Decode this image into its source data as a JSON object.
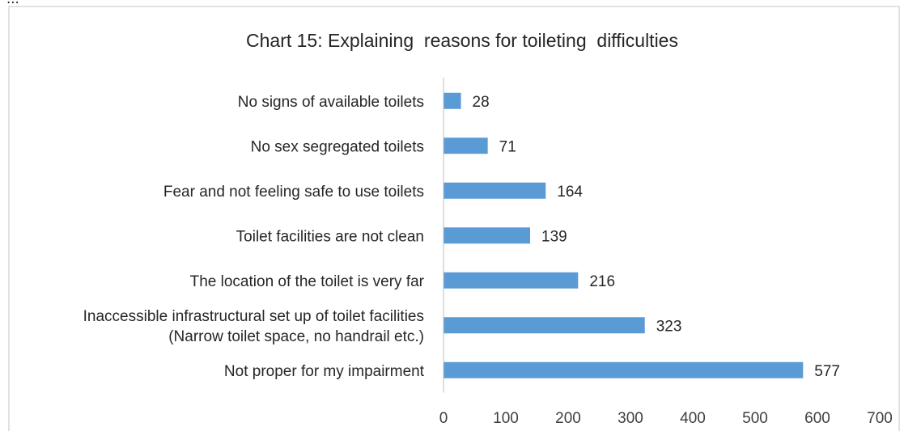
{
  "header_fragment": "...",
  "chart_data": {
    "type": "bar",
    "orientation": "horizontal",
    "title": "Chart 15: Explaining  reasons for toileting  difficulties",
    "xlabel": "",
    "ylabel": "",
    "xlim": [
      0,
      700
    ],
    "ticks": [
      0,
      100,
      200,
      300,
      400,
      500,
      600,
      700
    ],
    "grid": false,
    "legend": "none",
    "bar_color": "#5b9bd5",
    "categories": [
      [
        "No signs of available toilets"
      ],
      [
        "No sex segregated toilets"
      ],
      [
        "Fear and not feeling safe to use toilets"
      ],
      [
        "Toilet facilities are not clean"
      ],
      [
        "The location of the toilet is very far"
      ],
      [
        "Inaccessible infrastructural set up of toilet facilities",
        "(Narrow toilet space, no handrail etc.)"
      ],
      [
        "Not proper for my impairment"
      ]
    ],
    "values": [
      28,
      71,
      164,
      139,
      216,
      323,
      577
    ]
  }
}
